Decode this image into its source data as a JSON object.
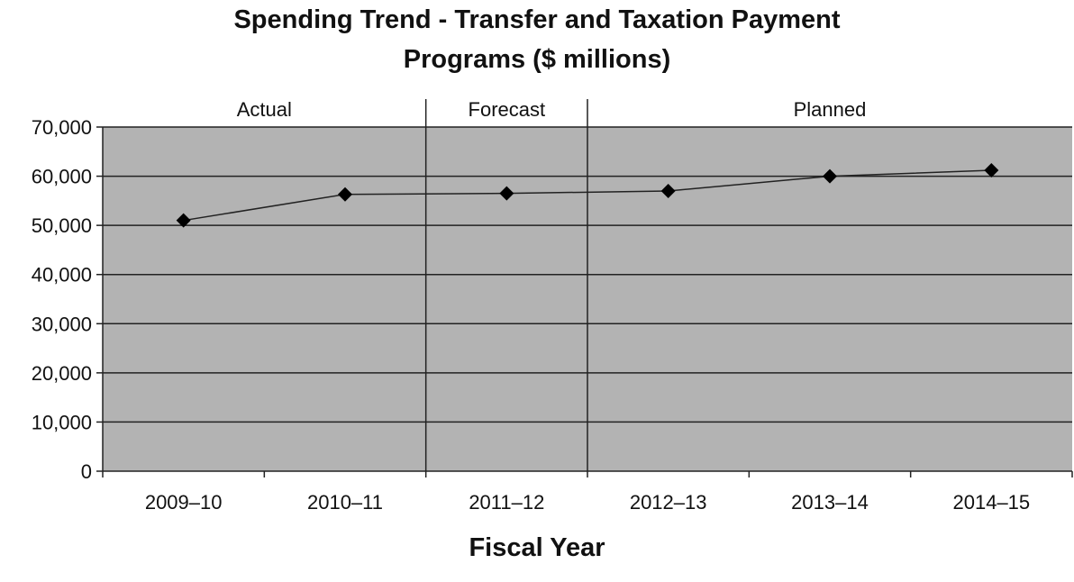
{
  "chart_data": {
    "type": "line",
    "title": "Spending Trend - Transfer and Taxation Payment Programs ($ millions)",
    "title_lines": [
      "Spending Trend - Transfer and Taxation Payment",
      "Programs ($ millions)"
    ],
    "xlabel": "Fiscal Year",
    "ylabel": "",
    "categories": [
      "2009–10",
      "2010–11",
      "2011–12",
      "2012–13",
      "2013–14",
      "2014–15"
    ],
    "series": [
      {
        "values": [
          51000,
          56300,
          56500,
          57000,
          60000,
          61200
        ]
      }
    ],
    "ylim": [
      0,
      70000
    ],
    "yticks": [
      0,
      10000,
      20000,
      30000,
      40000,
      50000,
      60000,
      70000
    ],
    "ytick_labels": [
      "0",
      "10,000",
      "20,000",
      "30,000",
      "40,000",
      "50,000",
      "60,000",
      "70,000"
    ],
    "periods": [
      {
        "label": "Actual",
        "start_index": 0,
        "end_index": 1
      },
      {
        "label": "Forecast",
        "start_index": 2,
        "end_index": 2
      },
      {
        "label": "Planned",
        "start_index": 3,
        "end_index": 5
      }
    ],
    "grid": true,
    "legend": "none",
    "colors": {
      "plot_background": "#b3b3b3",
      "gridline": "#222222",
      "line": "#222222",
      "marker": "#000000"
    },
    "marker": "diamond"
  }
}
